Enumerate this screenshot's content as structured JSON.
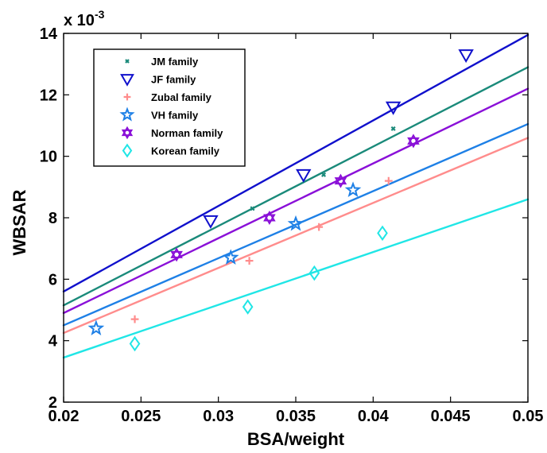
{
  "chart_data": {
    "type": "scatter",
    "xlabel": "BSA/weight",
    "ylabel": "WBSAR",
    "exponent_label": "x 10",
    "exponent_power": "-3",
    "xlim": [
      0.02,
      0.05
    ],
    "ylim": [
      2,
      14
    ],
    "xticks": [
      0.02,
      0.025,
      0.03,
      0.035,
      0.04,
      0.045,
      0.05
    ],
    "xtick_labels": [
      "0.02",
      "0.025",
      "0.03",
      "0.035",
      "0.04",
      "0.045",
      "0.05"
    ],
    "yticks": [
      2,
      4,
      6,
      8,
      10,
      12,
      14
    ],
    "ytick_labels": [
      "2",
      "4",
      "6",
      "8",
      "10",
      "12",
      "14"
    ],
    "grid": false,
    "legend_position": "top-left",
    "series": [
      {
        "name": "JM family",
        "marker": "x",
        "color": "#1a8a7a",
        "points": [
          [
            0.0322,
            8.3
          ],
          [
            0.0368,
            9.4
          ],
          [
            0.0413,
            10.9
          ]
        ],
        "fit": [
          [
            0.02,
            5.15
          ],
          [
            0.05,
            12.9
          ]
        ]
      },
      {
        "name": "JF family",
        "marker": "triangle-down",
        "color": "#1010cc",
        "points": [
          [
            0.0295,
            7.9
          ],
          [
            0.0355,
            9.4
          ],
          [
            0.0413,
            11.6
          ],
          [
            0.046,
            13.3
          ]
        ],
        "fit": [
          [
            0.02,
            5.6
          ],
          [
            0.05,
            13.95
          ]
        ]
      },
      {
        "name": "Zubal family",
        "marker": "plus",
        "color": "#ff8c8c",
        "points": [
          [
            0.0246,
            4.7
          ],
          [
            0.032,
            6.6
          ],
          [
            0.0365,
            7.7
          ],
          [
            0.041,
            9.2
          ]
        ],
        "fit": [
          [
            0.02,
            4.25
          ],
          [
            0.05,
            10.6
          ]
        ]
      },
      {
        "name": "VH family",
        "marker": "star",
        "color": "#1e80e6",
        "points": [
          [
            0.0221,
            4.4
          ],
          [
            0.0308,
            6.7
          ],
          [
            0.035,
            7.8
          ],
          [
            0.0387,
            8.9
          ]
        ],
        "fit": [
          [
            0.02,
            4.5
          ],
          [
            0.05,
            11.05
          ]
        ]
      },
      {
        "name": "Norman family",
        "marker": "hexagram",
        "color": "#8a10d8",
        "points": [
          [
            0.0273,
            6.8
          ],
          [
            0.0333,
            8.0
          ],
          [
            0.0379,
            9.2
          ],
          [
            0.0426,
            10.5
          ]
        ],
        "fit": [
          [
            0.02,
            4.9
          ],
          [
            0.05,
            12.2
          ]
        ]
      },
      {
        "name": "Korean family",
        "marker": "diamond",
        "color": "#20e6e6",
        "points": [
          [
            0.0246,
            3.9
          ],
          [
            0.0319,
            5.1
          ],
          [
            0.0362,
            6.2
          ],
          [
            0.0406,
            7.5
          ]
        ],
        "fit": [
          [
            0.02,
            3.45
          ],
          [
            0.05,
            8.6
          ]
        ]
      }
    ]
  }
}
